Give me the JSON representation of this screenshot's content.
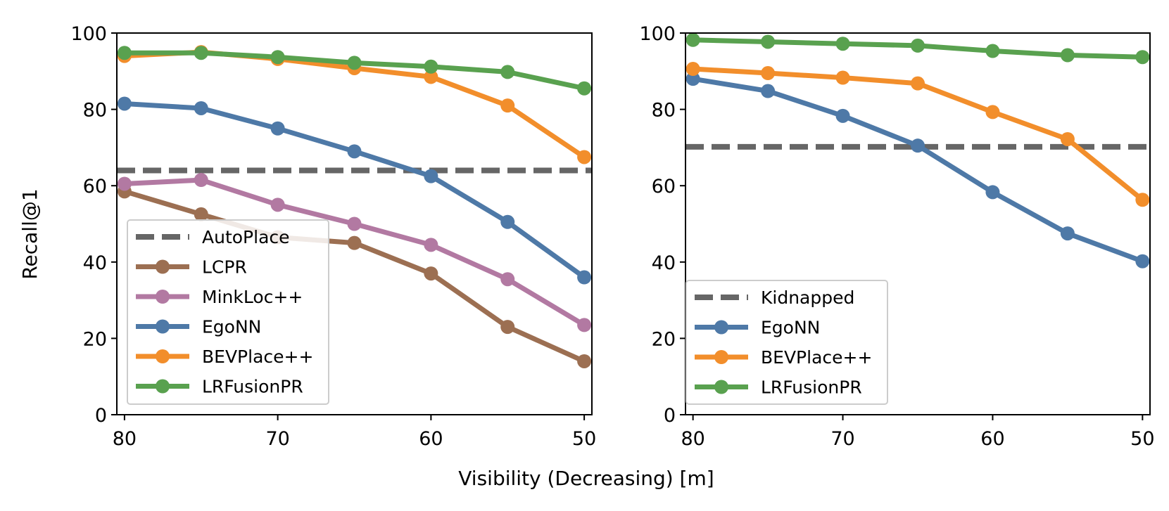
{
  "chart_data": [
    {
      "type": "line",
      "id": "left",
      "xlabel": "",
      "ylabel": "Recall@1",
      "x": [
        80,
        75,
        70,
        65,
        60,
        55,
        50
      ],
      "xlim": [
        80.5,
        49.5
      ],
      "xticks": [
        80,
        70,
        60,
        50
      ],
      "ylim": [
        0,
        100
      ],
      "yticks": [
        0,
        20,
        40,
        60,
        80,
        100
      ],
      "baseline": {
        "name": "AutoPlace",
        "value": 64,
        "color": "#666666"
      },
      "series": [
        {
          "name": "LCPR",
          "color": "#9c6f52",
          "values": [
            58.5,
            52.5,
            46.5,
            45,
            37,
            23,
            14
          ]
        },
        {
          "name": "MinkLoc++",
          "color": "#b279a2",
          "values": [
            60.5,
            61.5,
            55,
            50,
            44.5,
            35.5,
            23.5
          ]
        },
        {
          "name": "EgoNN",
          "color": "#4e79a7",
          "values": [
            81.5,
            80.3,
            75,
            69,
            62.5,
            50.5,
            36
          ]
        },
        {
          "name": "BEVPlace++",
          "color": "#f28e2b",
          "values": [
            94,
            95,
            93.2,
            90.8,
            88.5,
            81,
            67.5
          ]
        },
        {
          "name": "LRFusionPR",
          "color": "#59a14f",
          "values": [
            94.8,
            94.8,
            93.7,
            92.2,
            91.2,
            89.8,
            85.5
          ]
        }
      ],
      "legend": [
        "AutoPlace",
        "LCPR",
        "MinkLoc++",
        "EgoNN",
        "BEVPlace++",
        "LRFusionPR"
      ]
    },
    {
      "type": "line",
      "id": "right",
      "xlabel": "",
      "ylabel": "",
      "x": [
        80,
        75,
        70,
        65,
        60,
        55,
        50
      ],
      "xlim": [
        80.5,
        49.5
      ],
      "xticks": [
        80,
        70,
        60,
        50
      ],
      "ylim": [
        0,
        100
      ],
      "yticks": [
        0,
        20,
        40,
        60,
        80,
        100
      ],
      "baseline": {
        "name": "Kidnapped",
        "value": 70.2,
        "color": "#666666"
      },
      "series": [
        {
          "name": "EgoNN",
          "color": "#4e79a7",
          "values": [
            88,
            84.8,
            78.3,
            70.5,
            58.3,
            47.5,
            40.2
          ]
        },
        {
          "name": "BEVPlace++",
          "color": "#f28e2b",
          "values": [
            90.6,
            89.5,
            88.3,
            86.8,
            79.3,
            72.2,
            56.3
          ]
        },
        {
          "name": "LRFusionPR",
          "color": "#59a14f",
          "values": [
            98.2,
            97.7,
            97.2,
            96.7,
            95.3,
            94.2,
            93.7
          ]
        }
      ],
      "legend": [
        "Kidnapped",
        "EgoNN",
        "BEVPlace++",
        "LRFusionPR"
      ]
    }
  ],
  "shared": {
    "xlabel": "Visibility (Decreasing) [m]"
  }
}
